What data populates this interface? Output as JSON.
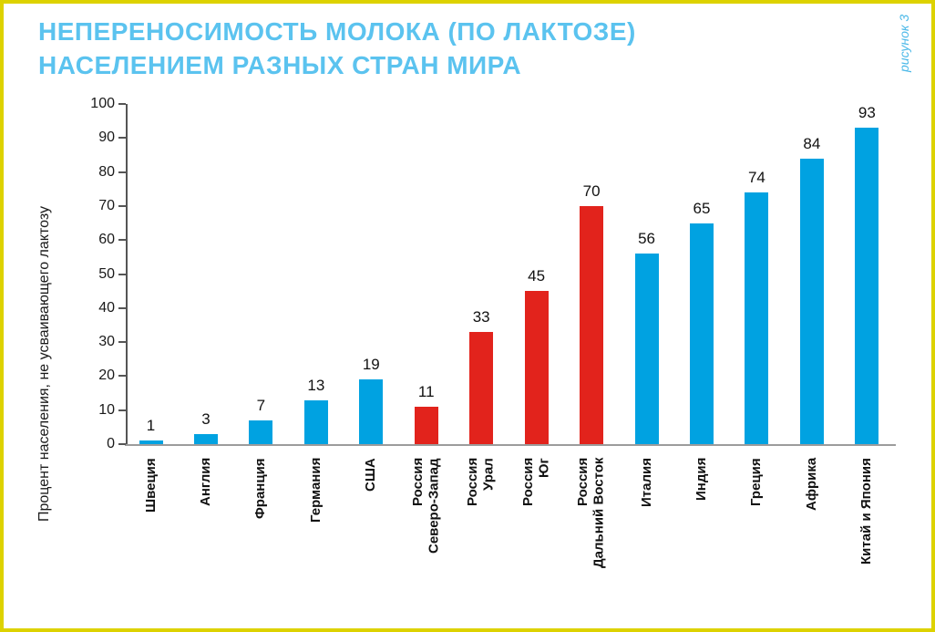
{
  "title": {
    "line1": "НЕПЕРЕНОСИМОСТЬ МОЛОКА (ПО ЛАКТОЗЕ)",
    "line2": "НАСЕЛЕНИЕМ РАЗНЫХ СТРАН МИРА"
  },
  "figure": {
    "label": "рисунок 3"
  },
  "colors": {
    "title": "#5bc3ef",
    "figure_label": "#4ab8e8",
    "bar_blue": "#00a2e1",
    "bar_red": "#e2231c",
    "border_yellow": "#ddd200",
    "axis_dark": "#555555",
    "baseline_gray": "#9c9c9c",
    "text": "#111111"
  },
  "chart_data": {
    "type": "bar",
    "title": "НЕПЕРЕНОСИМОСТЬ МОЛОКА (ПО ЛАКТОЗЕ) НАСЕЛЕНИЕМ РАЗНЫХ СТРАН МИРА",
    "xlabel": "",
    "ylabel": "Процент населения, не усваивающего лактозу",
    "ylim": [
      0,
      100
    ],
    "ytick_step": 10,
    "yticks": [
      0,
      10,
      20,
      30,
      40,
      50,
      60,
      70,
      80,
      90,
      100
    ],
    "grid": false,
    "legend": "none",
    "bars": [
      {
        "label_lines": [
          "Швеция"
        ],
        "value": 1,
        "color": "blue"
      },
      {
        "label_lines": [
          "Англия"
        ],
        "value": 3,
        "color": "blue"
      },
      {
        "label_lines": [
          "Франция"
        ],
        "value": 7,
        "color": "blue"
      },
      {
        "label_lines": [
          "Германия"
        ],
        "value": 13,
        "color": "blue"
      },
      {
        "label_lines": [
          "США"
        ],
        "value": 19,
        "color": "blue"
      },
      {
        "label_lines": [
          "Россия",
          "Северо-Запад"
        ],
        "value": 11,
        "color": "red"
      },
      {
        "label_lines": [
          "Россия",
          "Урал"
        ],
        "value": 33,
        "color": "red"
      },
      {
        "label_lines": [
          "Россия",
          "Юг"
        ],
        "value": 45,
        "color": "red"
      },
      {
        "label_lines": [
          "Россия",
          "Дальний Восток"
        ],
        "value": 70,
        "color": "red"
      },
      {
        "label_lines": [
          "Италия"
        ],
        "value": 56,
        "color": "blue"
      },
      {
        "label_lines": [
          "Индия"
        ],
        "value": 65,
        "color": "blue"
      },
      {
        "label_lines": [
          "Греция"
        ],
        "value": 74,
        "color": "blue"
      },
      {
        "label_lines": [
          "Африка"
        ],
        "value": 84,
        "color": "blue"
      },
      {
        "label_lines": [
          "Китай и Япония"
        ],
        "value": 93,
        "color": "blue"
      }
    ]
  }
}
